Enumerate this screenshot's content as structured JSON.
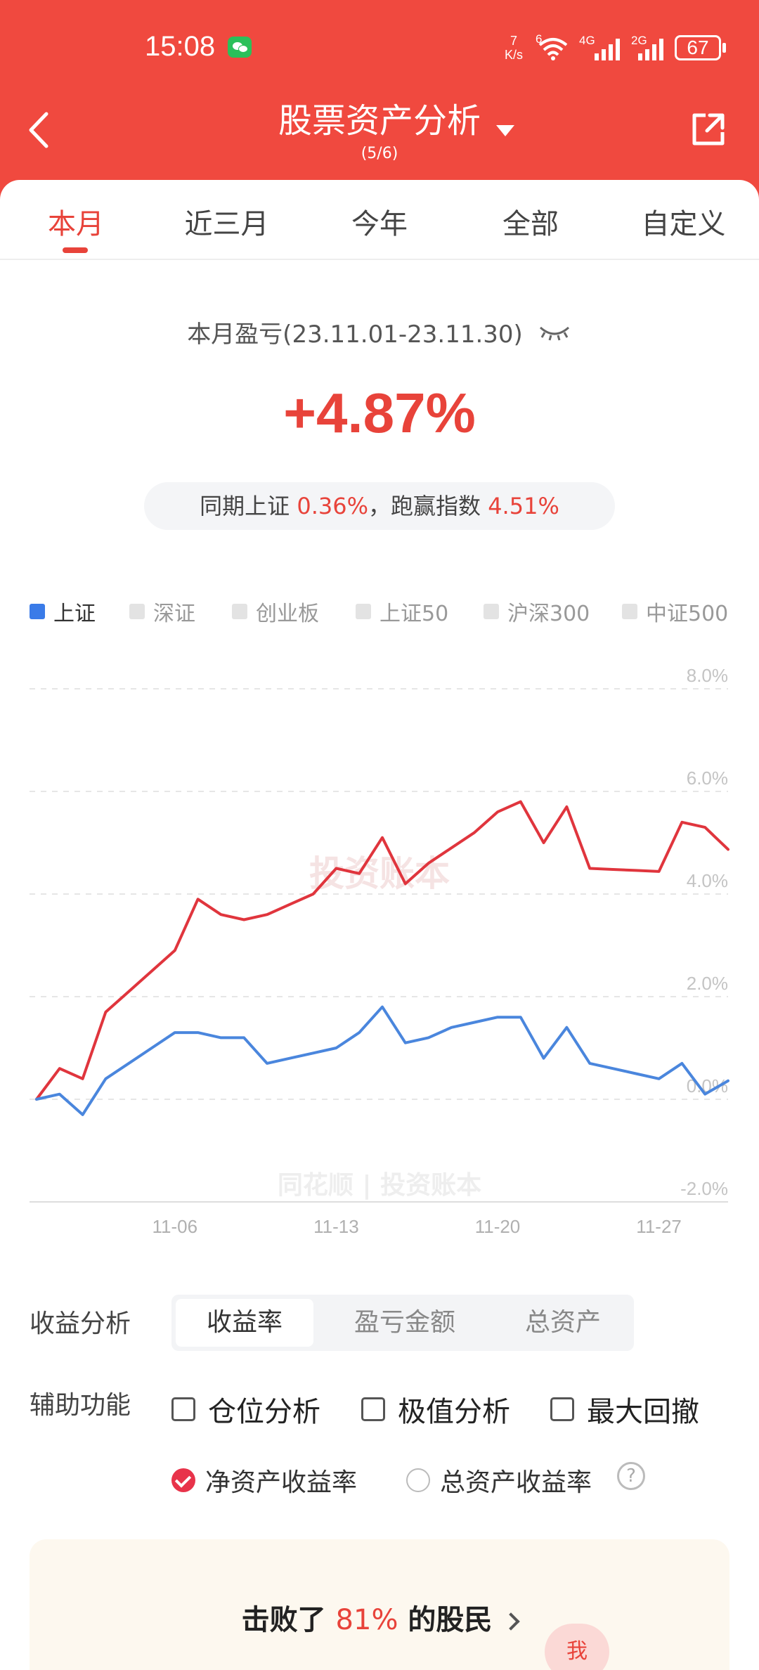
{
  "status": {
    "time": "15:08",
    "net_speed_value": "7",
    "net_speed_unit": "K/s",
    "wifi_label": "6",
    "sim1_label": "4G",
    "sim2_label": "2G",
    "battery": "67"
  },
  "header": {
    "title": "股票资产分析",
    "subtitle": "(5/6)"
  },
  "tabs": [
    {
      "label": "本月",
      "active": true
    },
    {
      "label": "近三月"
    },
    {
      "label": "今年"
    },
    {
      "label": "全部"
    },
    {
      "label": "自定义"
    }
  ],
  "summary": {
    "range_label": "本月盈亏(23.11.01-23.11.30)",
    "return": "+4.87%",
    "compare_prefix": "同期上证",
    "compare_index_value": "0.36%",
    "compare_sep": "，跑赢指数",
    "compare_beat_value": "4.51%"
  },
  "legend": [
    {
      "label": "上证",
      "active": true
    },
    {
      "label": "深证"
    },
    {
      "label": "创业板"
    },
    {
      "label": "上证50"
    },
    {
      "label": "沪深300"
    },
    {
      "label": "中证500"
    }
  ],
  "chart_data": {
    "type": "line",
    "ylim": [
      -2.0,
      8.0
    ],
    "yticks": [
      "8.0%",
      "6.0%",
      "4.0%",
      "2.0%",
      "0.0%",
      "-2.0%"
    ],
    "ytick_values": [
      8,
      6,
      4,
      2,
      0,
      -2
    ],
    "xticks": [
      "11-06",
      "11-13",
      "11-20",
      "11-27"
    ],
    "xtick_index": [
      6,
      13,
      20,
      27
    ],
    "x": [
      0,
      1,
      2,
      3,
      4,
      5,
      6,
      7,
      8,
      9,
      10,
      11,
      12,
      13,
      14,
      15,
      16,
      17,
      18,
      19,
      20,
      21,
      22,
      23,
      24,
      25,
      26,
      27,
      28,
      29,
      30
    ],
    "series": [
      {
        "name": "",
        "color": "#e0353d",
        "values": [
          0.0,
          0.6,
          0.4,
          1.7,
          2.1,
          2.5,
          2.9,
          3.9,
          3.6,
          3.5,
          3.6,
          3.8,
          4.0,
          4.5,
          4.4,
          5.1,
          4.2,
          4.6,
          4.9,
          5.2,
          5.6,
          5.8,
          5.0,
          5.7,
          4.5,
          4.48,
          4.46,
          4.44,
          5.4,
          5.3,
          4.87
        ]
      },
      {
        "name": "上证",
        "color": "#4a86dd",
        "values": [
          0.0,
          0.1,
          -0.3,
          0.4,
          0.7,
          1.0,
          1.3,
          1.3,
          1.2,
          1.2,
          0.7,
          0.8,
          0.9,
          1.0,
          1.3,
          1.8,
          1.1,
          1.2,
          1.4,
          1.5,
          1.6,
          1.6,
          0.8,
          1.4,
          0.7,
          0.6,
          0.5,
          0.4,
          0.7,
          0.1,
          0.36
        ]
      }
    ],
    "watermarks": [
      "投资账本",
      "同花顺 | 投资账本"
    ],
    "grid": true,
    "legend_position": "top"
  },
  "controls": {
    "analysis_label": "收益分析",
    "segments": [
      {
        "label": "收益率",
        "active": true
      },
      {
        "label": "盈亏金额"
      },
      {
        "label": "总资产"
      }
    ],
    "aux_label": "辅助功能",
    "checks": [
      "仓位分析",
      "极值分析",
      "最大回撤"
    ],
    "radio_on": "净资产收益率",
    "radio_off": "总资产收益率",
    "help": "?"
  },
  "rank": {
    "prefix": "击败了",
    "value": "81%",
    "suffix": "的股民",
    "me": "我"
  },
  "colors": {
    "brand": "#f0493f",
    "accent_red": "#e8433a",
    "index_blue": "#4a86dd"
  }
}
